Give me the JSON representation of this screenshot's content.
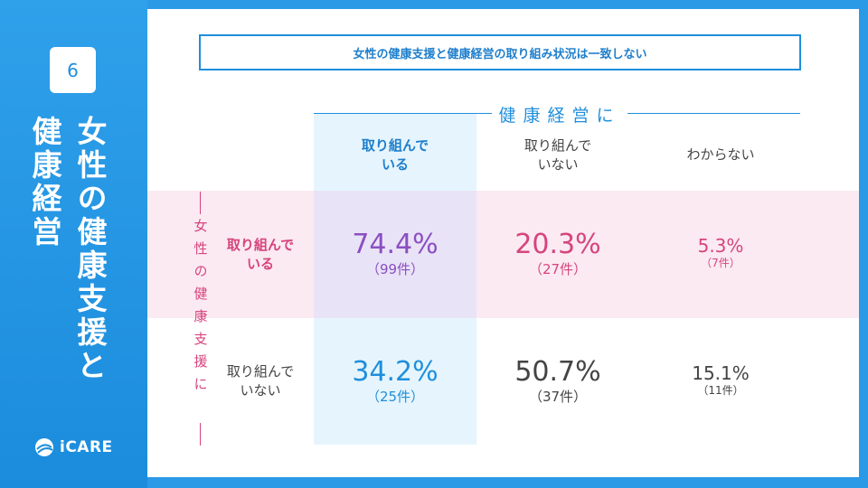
{
  "sidebar": {
    "slide_number": "6",
    "title_col1": "女性の健康支援と",
    "title_col2": "健康経営",
    "logo_text": "iCARE"
  },
  "banner": {
    "text": "女性の健康支援と健康経営の取り組み状況は一致しない"
  },
  "column_group": {
    "title": "健康経営に"
  },
  "columns": [
    {
      "line1": "取り組んで",
      "line2": "いる"
    },
    {
      "line1": "取り組んで",
      "line2": "いない"
    },
    {
      "line1": "わからない",
      "line2": ""
    }
  ],
  "row_group": {
    "title": "女性の健康支援に"
  },
  "rows": [
    {
      "line1": "取り組んで",
      "line2": "いる"
    },
    {
      "line1": "取り組んで",
      "line2": "いない"
    }
  ],
  "cells": [
    [
      {
        "pct": "74.4%",
        "count": "（99件）"
      },
      {
        "pct": "20.3%",
        "count": "（27件）"
      },
      {
        "pct": "5.3%",
        "count": "（7件）"
      }
    ],
    [
      {
        "pct": "34.2%",
        "count": "（25件）"
      },
      {
        "pct": "50.7%",
        "count": "（37件）"
      },
      {
        "pct": "15.1%",
        "count": "（11件）"
      }
    ]
  ],
  "colors": {
    "accent_blue": "#1f8fdc",
    "accent_pink": "#d6447e",
    "accent_purple": "#8b4fc1",
    "text_dark": "#444444"
  }
}
